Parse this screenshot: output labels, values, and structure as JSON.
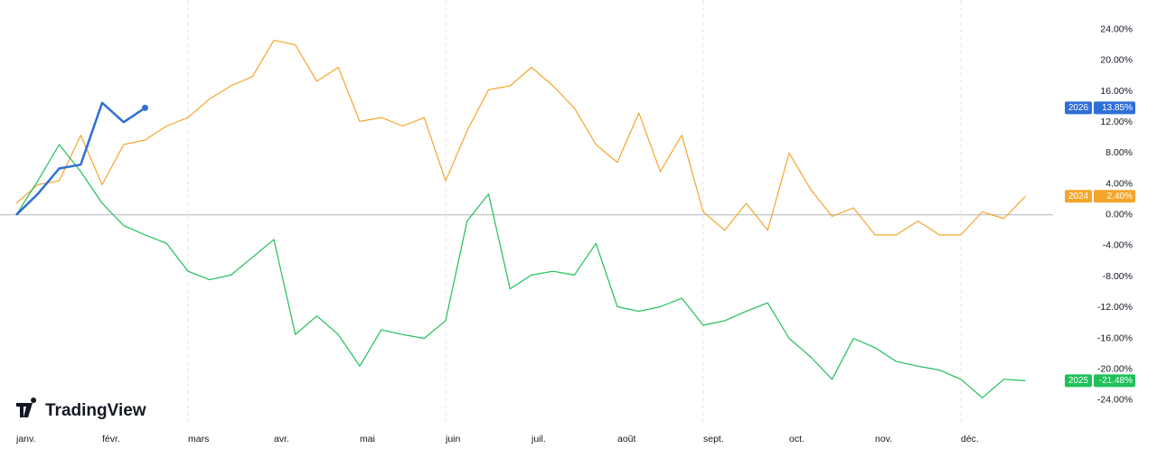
{
  "chart_data": {
    "type": "line",
    "watermark": "TradingView",
    "categories": [
      "janv.",
      null,
      null,
      null,
      "févr.",
      null,
      null,
      null,
      "mars",
      null,
      null,
      null,
      "avr.",
      null,
      null,
      null,
      "mai",
      null,
      null,
      null,
      "juin",
      null,
      null,
      null,
      "juil.",
      null,
      null,
      null,
      "août",
      null,
      null,
      null,
      "sept.",
      null,
      null,
      null,
      "oct.",
      null,
      null,
      null,
      "nov.",
      null,
      null,
      null,
      "déc.",
      null,
      null,
      null
    ],
    "series": [
      {
        "name": "2024",
        "color": "#f2a62b",
        "width": 1.2,
        "values": [
          1.5,
          3.9,
          4.4,
          10.3,
          3.9,
          9.1,
          9.7,
          11.5,
          12.6,
          15,
          16.7,
          17.9,
          22.6,
          22,
          17.3,
          19.1,
          12.1,
          12.6,
          11.5,
          12.6,
          4.4,
          10.9,
          16.2,
          16.7,
          19.1,
          16.7,
          13.8,
          9.1,
          6.8,
          13.2,
          5.6,
          10.3,
          0.4,
          -2,
          1.5,
          -2,
          8,
          3.3,
          -0.2,
          0.9,
          -2.6,
          -2.6,
          -0.8,
          -2.6,
          -2.6,
          0.4,
          -0.5,
          2.4
        ],
        "value_labels": [
          null,
          null,
          null,
          null,
          null,
          null,
          null,
          null,
          null,
          null,
          null,
          null,
          null,
          null,
          null,
          null,
          null,
          null,
          null,
          null,
          null,
          null,
          null,
          null,
          null,
          null,
          null,
          null,
          null,
          null,
          null,
          null,
          null,
          null,
          null,
          null,
          null,
          null,
          null,
          null,
          null,
          null,
          null,
          null,
          null,
          null,
          null,
          "2.40%"
        ]
      },
      {
        "name": "2025",
        "color": "#1fbf5a",
        "width": 1.2,
        "values": [
          0,
          4.4,
          9.1,
          5.6,
          1.5,
          -1.4,
          -2.6,
          -3.7,
          -7.3,
          -8.4,
          -7.8,
          -5.5,
          -3.2,
          -15.5,
          -13.1,
          -15.5,
          -19.6,
          -14.9,
          -15.5,
          -16,
          -13.7,
          -0.8,
          2.7,
          -9.6,
          -7.8,
          -7.3,
          -7.8,
          -3.7,
          -11.9,
          -12.5,
          -11.9,
          -10.8,
          -14.3,
          -13.7,
          -12.5,
          -11.4,
          -16,
          -18.4,
          -21.3,
          -16,
          -17.2,
          -19,
          -19.6,
          -20.1,
          -21.3,
          -23.7,
          -21.3,
          -21.48
        ],
        "value_labels": [
          null,
          null,
          null,
          null,
          null,
          null,
          null,
          null,
          null,
          null,
          null,
          null,
          null,
          null,
          null,
          null,
          null,
          null,
          null,
          null,
          null,
          null,
          null,
          null,
          null,
          null,
          null,
          null,
          null,
          null,
          null,
          null,
          null,
          null,
          null,
          null,
          null,
          null,
          null,
          null,
          null,
          null,
          null,
          null,
          null,
          null,
          null,
          "-21.48%"
        ]
      },
      {
        "name": "2026",
        "color": "#2f6fd6",
        "width": 2.5,
        "values": [
          0,
          2.7,
          6,
          6.5,
          14.5,
          12,
          13.85,
          null,
          null,
          null,
          null,
          null,
          null,
          null,
          null,
          null,
          null,
          null,
          null,
          null,
          null,
          null,
          null,
          null,
          null,
          null,
          null,
          null,
          null,
          null,
          null,
          null,
          null,
          null,
          null,
          null,
          null,
          null,
          null,
          null,
          null,
          null,
          null,
          null,
          null,
          null,
          null,
          null
        ],
        "value_labels": [
          null,
          null,
          null,
          null,
          null,
          null,
          "13.85%",
          null,
          null,
          null,
          null,
          null,
          null,
          null,
          null,
          null,
          null,
          null,
          null,
          null,
          null,
          null,
          null,
          null,
          null,
          null,
          null,
          null,
          null,
          null,
          null,
          null,
          null,
          null,
          null,
          null,
          null,
          null,
          null,
          null,
          null,
          null,
          null,
          null,
          null,
          null,
          null,
          null
        ]
      }
    ],
    "ylim": [
      -26,
      27
    ],
    "yticks": [
      {
        "value": 24,
        "label": "24.00%"
      },
      {
        "value": 20,
        "label": "20.00%"
      },
      {
        "value": 16,
        "label": "16.00%"
      },
      {
        "value": 12,
        "label": "12.00%"
      },
      {
        "value": 8,
        "label": "8.00%"
      },
      {
        "value": 4,
        "label": "4.00%"
      },
      {
        "value": 0,
        "label": "0.00%"
      },
      {
        "value": -4,
        "label": "-4.00%"
      },
      {
        "value": -8,
        "label": "-8.00%"
      },
      {
        "value": -12,
        "label": "-12.00%"
      },
      {
        "value": -16,
        "label": "-16.00%"
      },
      {
        "value": -20,
        "label": "-20.00%"
      },
      {
        "value": -24,
        "label": "-24.00%"
      }
    ]
  }
}
